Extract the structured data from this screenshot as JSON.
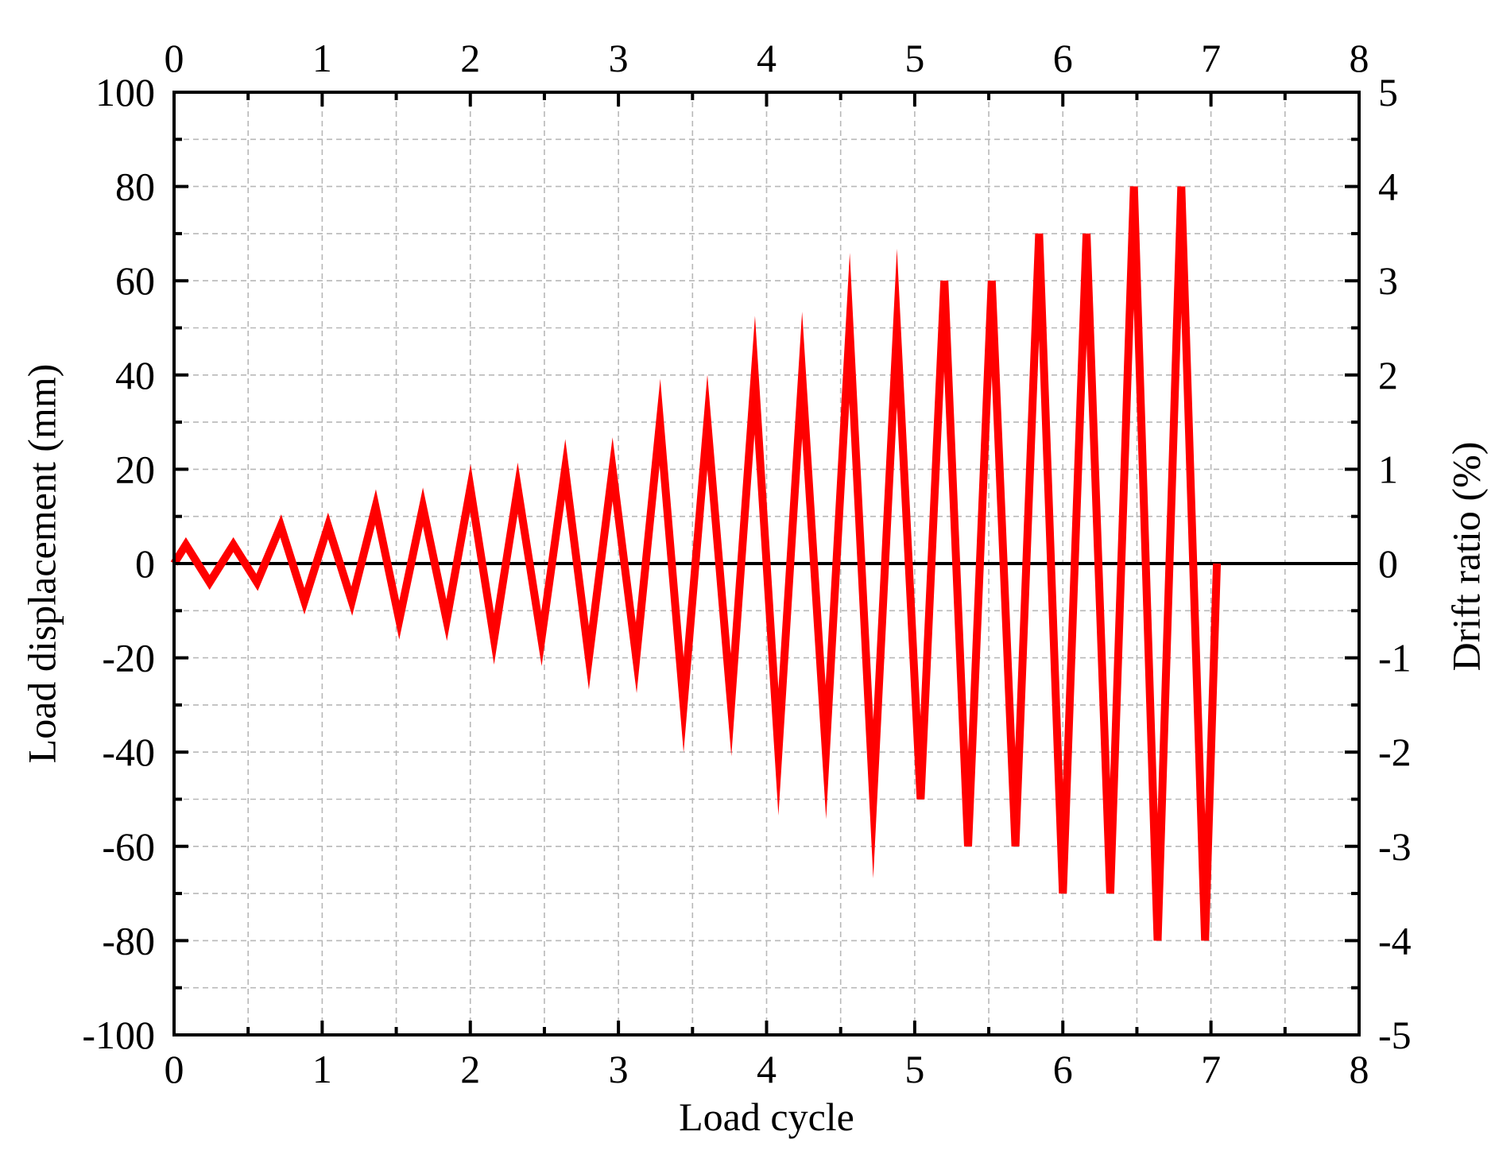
{
  "chart_data": {
    "type": "line",
    "title": "",
    "xlabel": "Load cycle",
    "ylabel": "Load displacement (mm)",
    "y2label": "Drift ratio (%)",
    "xlim": [
      0,
      8
    ],
    "ylim": [
      -100,
      100
    ],
    "y2lim": [
      -5,
      5
    ],
    "x_ticks": [
      "0",
      "1",
      "2",
      "3",
      "4",
      "5",
      "6",
      "7",
      "8"
    ],
    "y_ticks": [
      "-100",
      "-80",
      "-60",
      "-40",
      "-20",
      "0",
      "20",
      "40",
      "60",
      "80",
      "100"
    ],
    "y2_ticks": [
      "-5",
      "-4",
      "-3",
      "-2",
      "-1",
      "0",
      "1",
      "2",
      "3",
      "4",
      "5"
    ],
    "grid": true,
    "zero_line": true,
    "colors": {
      "series": "#ff0000",
      "axes": "#000000",
      "grid": "#b8b8b8"
    },
    "series": [
      {
        "x": [
          0,
          0.08,
          0.24,
          0.4,
          0.56,
          0.72,
          0.88,
          1.04,
          1.2,
          1.36,
          1.52,
          1.68,
          1.84,
          2.0,
          2.16,
          2.32,
          2.48,
          2.64,
          2.8,
          2.96,
          3.12,
          3.28,
          3.44,
          3.6,
          3.76,
          3.92,
          4.08,
          4.24,
          4.4,
          4.56,
          4.72,
          4.88,
          5.04,
          5.2,
          5.36,
          5.52,
          5.68,
          5.84,
          6.0,
          6.16,
          6.32,
          6.48,
          6.64,
          6.8,
          6.96,
          7.04
        ],
        "values": [
          0,
          4,
          -4,
          4,
          -4,
          8,
          -8,
          8,
          -8,
          12,
          -12,
          12,
          -12,
          16,
          -16,
          16,
          -16,
          20,
          -20,
          20,
          -20,
          30,
          -30,
          30,
          -30,
          40,
          -40,
          40,
          -40,
          50,
          -50,
          50,
          -50,
          60,
          -60,
          60,
          -60,
          70,
          -70,
          70,
          -70,
          80,
          -80,
          80,
          -80,
          0
        ]
      }
    ]
  }
}
